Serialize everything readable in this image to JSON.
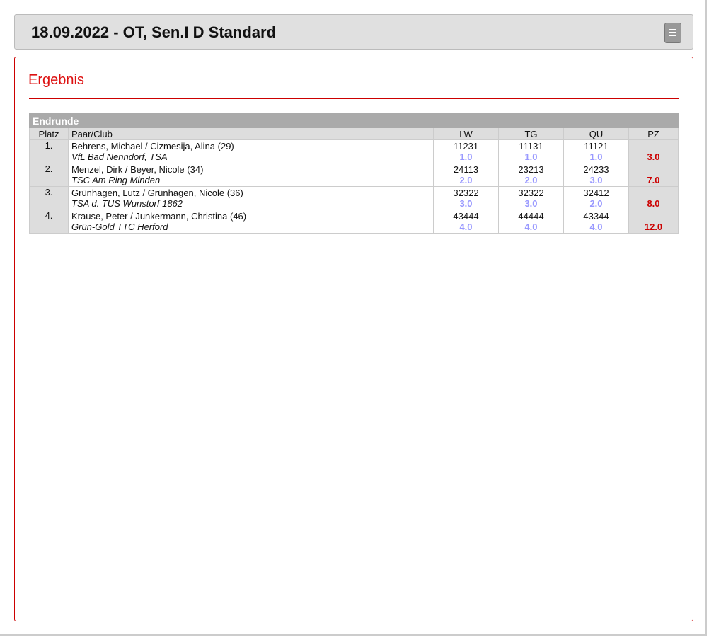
{
  "header": {
    "title": "18.09.2022 - OT, Sen.I D Standard"
  },
  "section": {
    "title": "Ergebnis"
  },
  "table": {
    "caption": "Endrunde",
    "columns": [
      "Platz",
      "Paar/Club",
      "LW",
      "TG",
      "QU",
      "PZ"
    ],
    "rows": [
      {
        "place": "1.",
        "couple": "Behrens, Michael / Cizmesija, Alina (29)",
        "club": "VfL Bad Nenndorf, TSA",
        "scores": [
          {
            "marks": "11231",
            "place": "1.0"
          },
          {
            "marks": "11131",
            "place": "1.0"
          },
          {
            "marks": "11121",
            "place": "1.0"
          }
        ],
        "pz": "3.0"
      },
      {
        "place": "2.",
        "couple": "Menzel, Dirk / Beyer, Nicole (34)",
        "club": "TSC Am Ring Minden",
        "scores": [
          {
            "marks": "24113",
            "place": "2.0"
          },
          {
            "marks": "23213",
            "place": "2.0"
          },
          {
            "marks": "24233",
            "place": "3.0"
          }
        ],
        "pz": "7.0"
      },
      {
        "place": "3.",
        "couple": "Grünhagen, Lutz / Grünhagen, Nicole (36)",
        "club": "TSA d. TUS Wunstorf 1862",
        "scores": [
          {
            "marks": "32322",
            "place": "3.0"
          },
          {
            "marks": "32322",
            "place": "3.0"
          },
          {
            "marks": "32412",
            "place": "2.0"
          }
        ],
        "pz": "8.0"
      },
      {
        "place": "4.",
        "couple": "Krause, Peter / Junkermann, Christina (46)",
        "club": "Grün-Gold TTC Herford",
        "scores": [
          {
            "marks": "43444",
            "place": "4.0"
          },
          {
            "marks": "44444",
            "place": "4.0"
          },
          {
            "marks": "43344",
            "place": "4.0"
          }
        ],
        "pz": "12.0"
      }
    ]
  }
}
